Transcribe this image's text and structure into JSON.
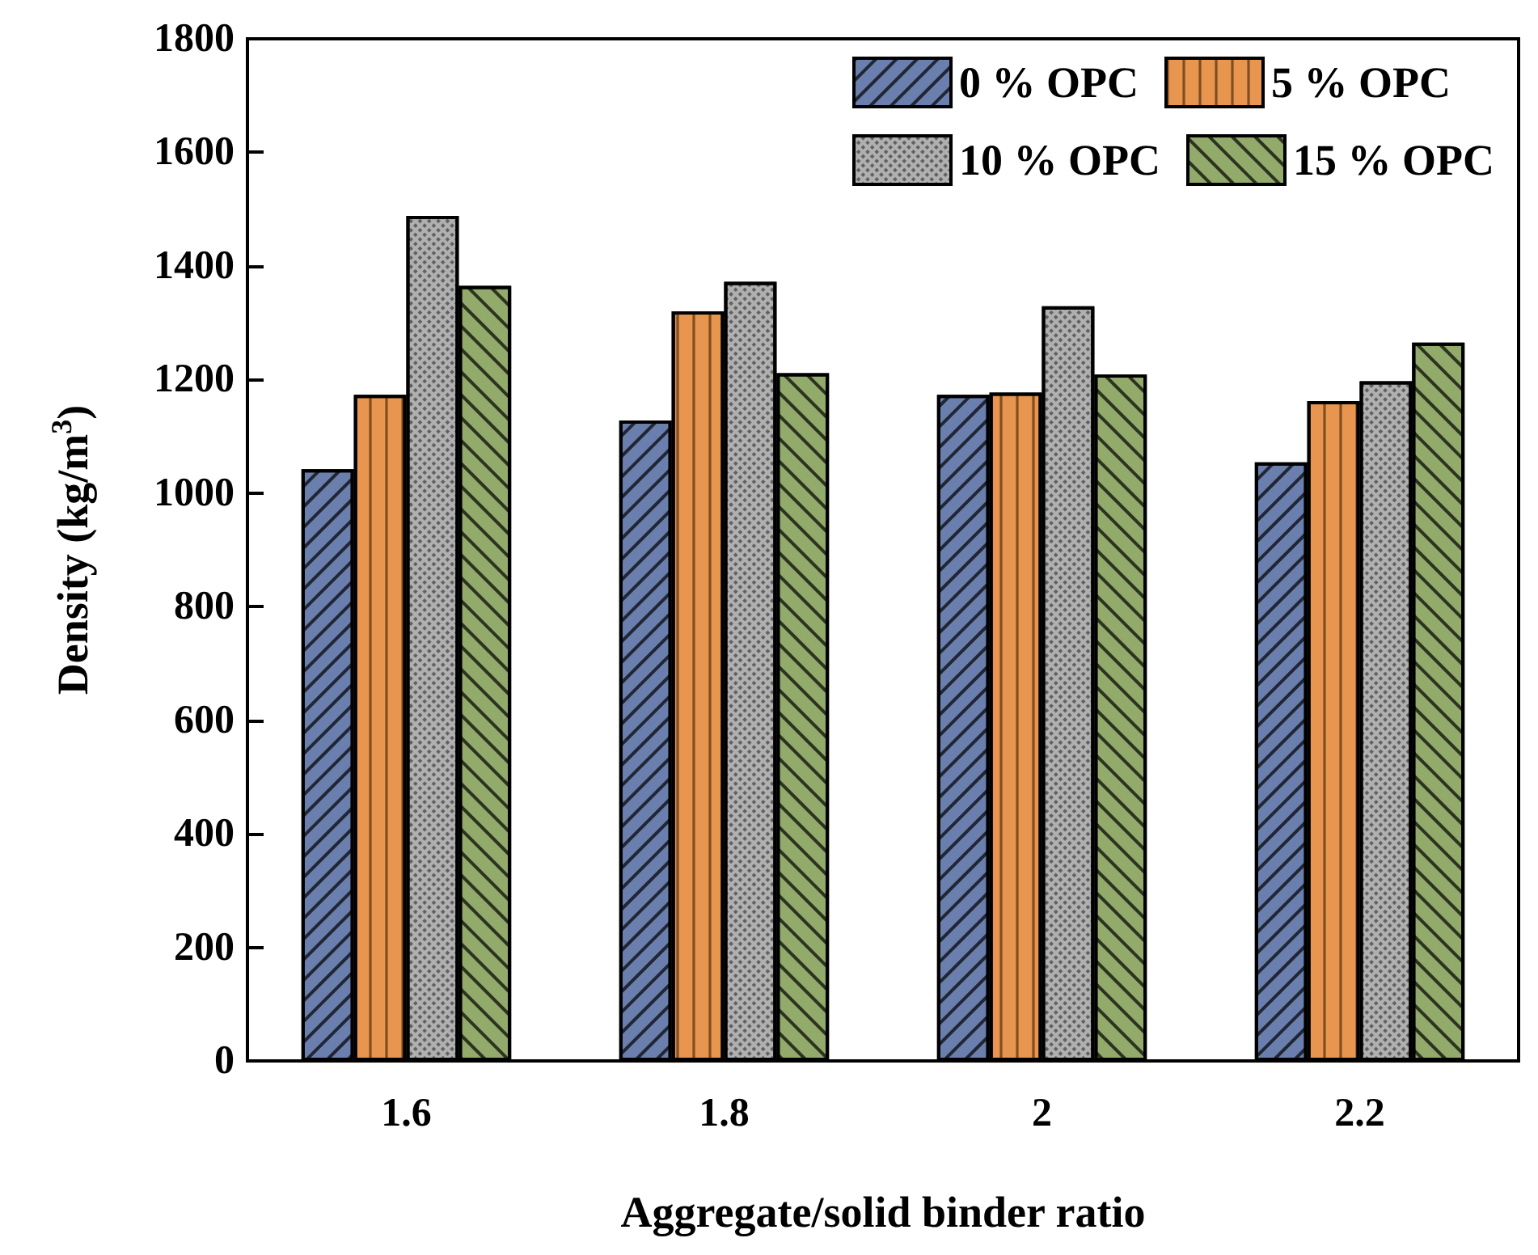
{
  "chart_data": {
    "type": "bar",
    "xlabel": "Aggregate/solid binder ratio",
    "ylabel": "Density (kg/m$^{3}$)",
    "categories": [
      "1.6",
      "1.8",
      "2",
      "2.2"
    ],
    "series": [
      {
        "name": "0 % OPC",
        "color": "#6a7fad",
        "values": [
          1042,
          1128,
          1173,
          1054
        ]
      },
      {
        "name": "5 % OPC",
        "color": "#e8954f",
        "values": [
          1173,
          1320,
          1177,
          1162
        ]
      },
      {
        "name": "10 % OPC",
        "color": "#b0b0b0",
        "values": [
          1488,
          1372,
          1329,
          1197
        ]
      },
      {
        "name": "15 % OPC",
        "color": "#92aa6a",
        "values": [
          1365,
          1211,
          1209,
          1265
        ]
      }
    ],
    "ylim": [
      0,
      1800
    ],
    "yticks": [
      0,
      200,
      400,
      600,
      800,
      1000,
      1200,
      1400,
      1600,
      1800
    ],
    "grid": false,
    "legend": "top right"
  }
}
